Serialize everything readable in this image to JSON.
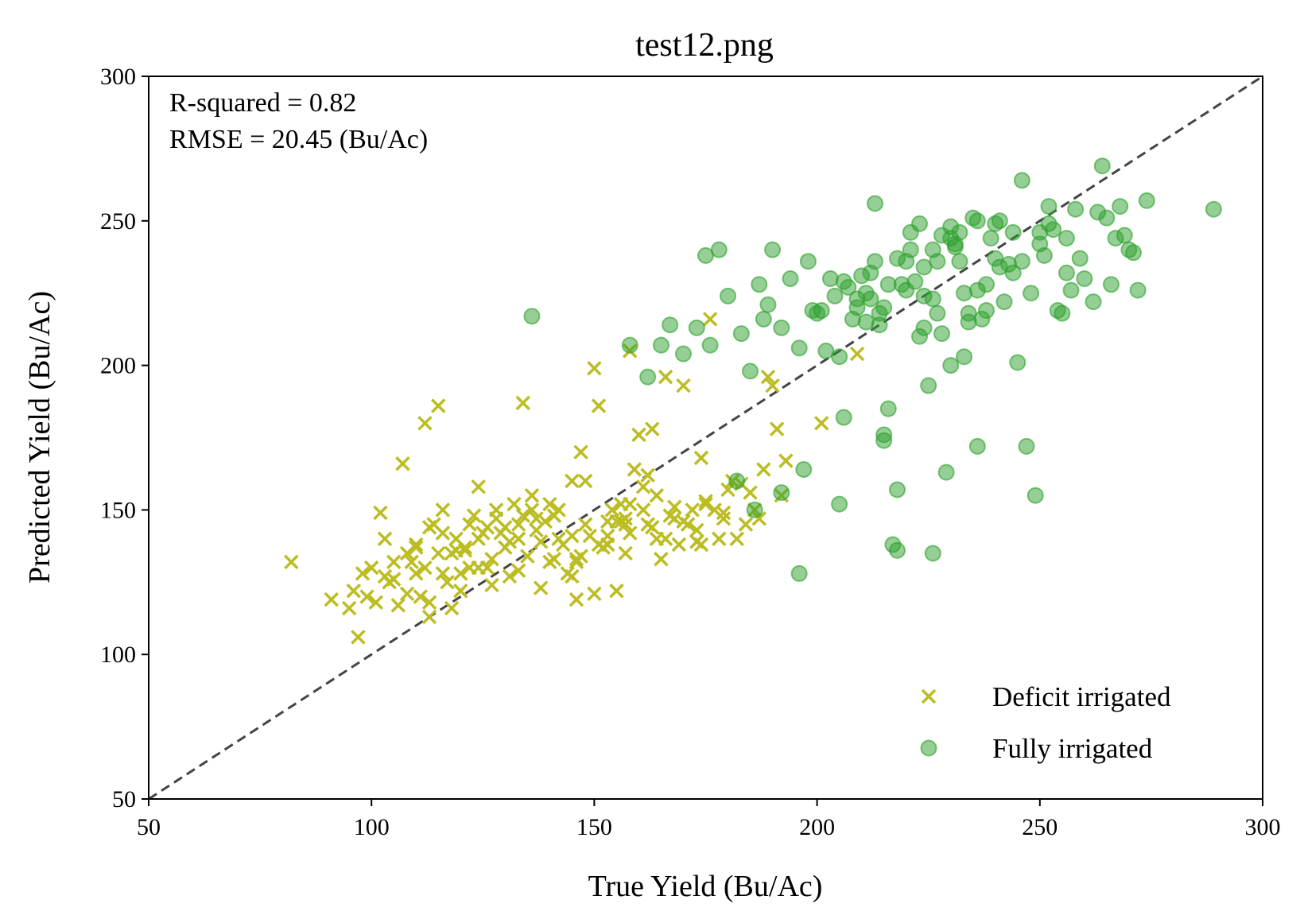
{
  "chart_data": {
    "type": "scatter",
    "title": "test12.png",
    "xlabel": "True Yield (Bu/Ac)",
    "ylabel": "Predicted Yield (Bu/Ac)",
    "xlim": [
      50,
      300
    ],
    "ylim": [
      50,
      300
    ],
    "xticks": [
      "50",
      "100",
      "150",
      "200",
      "250",
      "300"
    ],
    "yticks": [
      "50",
      "100",
      "150",
      "200",
      "250",
      "300"
    ],
    "grid": false,
    "legend_position": "lower-right",
    "annotations": [
      "R-squared = 0.82",
      "RMSE = 20.45 (Bu/Ac)"
    ],
    "reference_line": {
      "from": [
        50,
        50
      ],
      "to": [
        300,
        300
      ],
      "style": "dashed",
      "color": "#444444"
    },
    "series": [
      {
        "name": "Deficit irrigated",
        "marker": "x",
        "color": "#bcbd22",
        "x": [
          82,
          91,
          95,
          96,
          97,
          98,
          99,
          100,
          101,
          102,
          103,
          104,
          105,
          107,
          108,
          110,
          112,
          113,
          115,
          116,
          118,
          120,
          122,
          124,
          125,
          127,
          128,
          130,
          133,
          134,
          136,
          137,
          138,
          140,
          141,
          143,
          145,
          146,
          147,
          148,
          150,
          151,
          153,
          155,
          156,
          157,
          158,
          159,
          160,
          161,
          162,
          163,
          165,
          166,
          168,
          170,
          172,
          174,
          176,
          178,
          180,
          182,
          185,
          187,
          189,
          191,
          193,
          201,
          209,
          105,
          110,
          112,
          114,
          117,
          119,
          121,
          123,
          126,
          129,
          131,
          132,
          135,
          139,
          142,
          144,
          149,
          152,
          154,
          158,
          164,
          167,
          171,
          173,
          175,
          177,
          179,
          181,
          183,
          186,
          188,
          190,
          192,
          111,
          109,
          106,
          118,
          122,
          130,
          137,
          146,
          150,
          155,
          162,
          169,
          175,
          184,
          103,
          108,
          113,
          116,
          119,
          124,
          128,
          133,
          138,
          141,
          145,
          148,
          153,
          157,
          161,
          166,
          170,
          174,
          179,
          113,
          116,
          121,
          127,
          133,
          140,
          145,
          151,
          156,
          163,
          168,
          173,
          115,
          120,
          126,
          131,
          136,
          142,
          147,
          153,
          158,
          164,
          110,
          124,
          134,
          146,
          157
        ],
        "y": [
          132,
          119,
          116,
          122,
          106,
          128,
          120,
          130,
          118,
          149,
          140,
          125,
          132,
          166,
          135,
          128,
          180,
          144,
          186,
          150,
          116,
          128,
          145,
          158,
          142,
          133,
          150,
          144,
          140,
          187,
          155,
          147,
          123,
          152,
          148,
          138,
          160,
          119,
          170,
          145,
          199,
          186,
          138,
          122,
          152,
          145,
          205,
          164,
          176,
          158,
          145,
          178,
          133,
          196,
          147,
          193,
          150,
          168,
          216,
          140,
          157,
          140,
          156,
          147,
          196,
          178,
          167,
          180,
          204,
          126,
          138,
          130,
          145,
          125,
          140,
          137,
          148,
          130,
          142,
          139,
          152,
          134,
          146,
          150,
          128,
          141,
          137,
          150,
          142,
          155,
          148,
          145,
          143,
          153,
          150,
          147,
          160,
          159,
          150,
          164,
          193,
          155,
          120,
          132,
          117,
          135,
          130,
          137,
          143,
          132,
          121,
          146,
          162,
          138,
          152,
          145,
          127,
          121,
          118,
          142,
          136,
          130,
          147,
          129,
          139,
          133,
          127,
          160,
          141,
          135,
          150,
          140,
          146,
          138,
          149,
          113,
          128,
          136,
          124,
          145,
          132,
          141,
          138,
          146,
          144,
          151,
          139,
          135,
          122,
          144,
          127,
          150,
          140,
          134,
          146,
          152,
          140,
          137,
          140,
          148,
          133,
          147
        ]
      },
      {
        "name": "Fully irrigated",
        "marker": "o",
        "color": "#2ca02c",
        "x": [
          136,
          158,
          162,
          165,
          167,
          170,
          173,
          175,
          178,
          180,
          183,
          185,
          187,
          189,
          190,
          192,
          194,
          196,
          198,
          200,
          202,
          204,
          206,
          207,
          209,
          211,
          213,
          215,
          216,
          218,
          219,
          221,
          223,
          225,
          226,
          228,
          230,
          232,
          234,
          236,
          238,
          240,
          242,
          244,
          246,
          248,
          250,
          252,
          254,
          256,
          258,
          260,
          262,
          264,
          266,
          268,
          270,
          272,
          274,
          289,
          196,
          205,
          215,
          218,
          226,
          236,
          245,
          249,
          211,
          214,
          203,
          192,
          197,
          186,
          215,
          217,
          224,
          229,
          233,
          237,
          241,
          243,
          247,
          251,
          255,
          259,
          263,
          267,
          271,
          208,
          212,
          220,
          222,
          227,
          231,
          235,
          239,
          241,
          244,
          253,
          257,
          176,
          182,
          188,
          199,
          210,
          214,
          221,
          224,
          230,
          233,
          238,
          250,
          256,
          265,
          269,
          224,
          228,
          232,
          236,
          240,
          218,
          226,
          230,
          234,
          212,
          216,
          220,
          206,
          201,
          205,
          209,
          213,
          223,
          227,
          231,
          246,
          252
        ],
        "y": [
          217,
          207,
          196,
          207,
          214,
          204,
          213,
          238,
          240,
          224,
          211,
          198,
          228,
          221,
          240,
          213,
          230,
          206,
          236,
          218,
          205,
          224,
          182,
          227,
          220,
          215,
          256,
          220,
          185,
          157,
          228,
          246,
          210,
          193,
          240,
          245,
          200,
          236,
          218,
          250,
          228,
          237,
          222,
          232,
          264,
          225,
          246,
          255,
          219,
          244,
          254,
          230,
          222,
          269,
          228,
          255,
          240,
          226,
          257,
          254,
          128,
          152,
          176,
          136,
          135,
          172,
          201,
          155,
          225,
          214,
          230,
          156,
          164,
          150,
          174,
          138,
          224,
          163,
          203,
          216,
          250,
          235,
          172,
          238,
          218,
          237,
          253,
          244,
          239,
          216,
          232,
          226,
          229,
          236,
          242,
          251,
          244,
          234,
          246,
          247,
          226,
          207,
          160,
          216,
          219,
          231,
          218,
          240,
          213,
          248,
          225,
          219,
          242,
          232,
          251,
          245,
          234,
          211,
          246,
          226,
          249,
          237,
          223,
          244,
          215,
          223,
          228,
          236,
          229,
          219,
          203,
          223,
          236,
          249,
          218,
          241,
          236,
          249
        ]
      }
    ]
  }
}
